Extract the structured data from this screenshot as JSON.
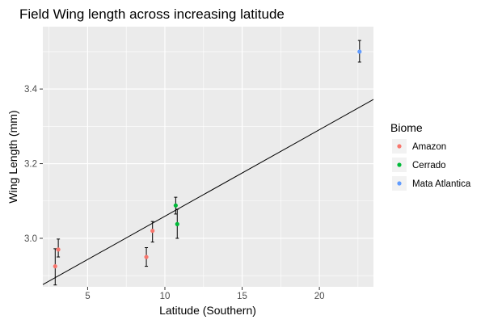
{
  "chart_data": {
    "type": "scatter",
    "title": "Field Wing length across increasing latitude",
    "xlabel": "Latitude (Southern)",
    "ylabel": "Wing Length (mm)",
    "xlim": [
      2.1,
      23.5
    ],
    "ylim": [
      2.87,
      3.567
    ],
    "x_ticks": [
      5,
      10,
      15,
      20
    ],
    "y_ticks": [
      3.0,
      3.2,
      3.4
    ],
    "x_tick_labels": [
      "5",
      "10",
      "15",
      "20"
    ],
    "y_tick_labels": [
      "3.0",
      "3.2",
      "3.4"
    ],
    "grid": true,
    "legend": {
      "title": "Biome",
      "position": "right",
      "entries": [
        {
          "label": "Amazon",
          "color": "#F8766D"
        },
        {
          "label": "Cerrado",
          "color": "#00BA38"
        },
        {
          "label": "Mata Atlantica",
          "color": "#619CFF"
        }
      ]
    },
    "series": [
      {
        "biome": "Amazon",
        "color": "#F8766D",
        "points": [
          {
            "x": 2.9,
            "y": 2.925,
            "ymin": 2.875,
            "ymax": 2.972
          },
          {
            "x": 3.1,
            "y": 2.97,
            "ymin": 2.95,
            "ymax": 2.998
          },
          {
            "x": 8.8,
            "y": 2.95,
            "ymin": 2.925,
            "ymax": 2.975
          },
          {
            "x": 9.2,
            "y": 3.02,
            "ymin": 2.99,
            "ymax": 3.045
          }
        ]
      },
      {
        "biome": "Cerrado",
        "color": "#00BA38",
        "points": [
          {
            "x": 10.7,
            "y": 3.088,
            "ymin": 3.065,
            "ymax": 3.11
          },
          {
            "x": 10.8,
            "y": 3.038,
            "ymin": 3.0,
            "ymax": 3.078
          }
        ]
      },
      {
        "biome": "Mata Atlantica",
        "color": "#619CFF",
        "points": [
          {
            "x": 22.6,
            "y": 3.5,
            "ymin": 3.472,
            "ymax": 3.53
          }
        ]
      }
    ],
    "regression_line": {
      "x0": 2.1,
      "y0": 2.876,
      "x1": 23.5,
      "y1": 3.372,
      "color": "#000000"
    }
  }
}
